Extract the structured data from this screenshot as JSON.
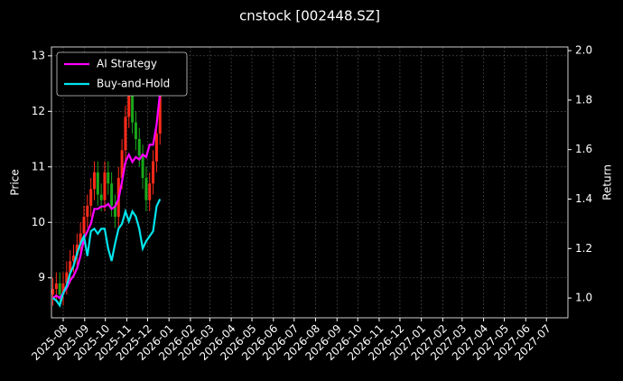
{
  "chart_data": {
    "type": "candlestick",
    "title": "cnstock [002448.SZ]",
    "ylabel": "Price",
    "y2label": "Return",
    "x": [
      2,
      7,
      12,
      17,
      22,
      27,
      32,
      37,
      42,
      47,
      52,
      57,
      62,
      67,
      72,
      77,
      82,
      87,
      92,
      97,
      102,
      107,
      112,
      117,
      122,
      127,
      132,
      137,
      142,
      147,
      152,
      157
    ],
    "open": [
      8.7,
      8.8,
      8.9,
      8.7,
      8.9,
      9.1,
      9.3,
      9.4,
      9.6,
      9.8,
      10.1,
      10.3,
      10.6,
      10.9,
      10.5,
      10.4,
      10.9,
      10.7,
      10.3,
      10.1,
      10.8,
      11.3,
      11.9,
      12.3,
      11.8,
      11.5,
      11.2,
      10.8,
      10.4,
      10.7,
      11.1,
      11.6
    ],
    "high": [
      9.0,
      9.1,
      9.1,
      9.1,
      9.3,
      9.5,
      9.6,
      9.8,
      10.0,
      10.3,
      10.5,
      10.8,
      11.1,
      11.1,
      10.7,
      11.1,
      11.1,
      10.9,
      10.5,
      11.0,
      11.5,
      12.1,
      12.5,
      12.5,
      12.0,
      11.7,
      11.4,
      11.0,
      10.9,
      11.3,
      11.8,
      12.6
    ],
    "low": [
      8.5,
      8.6,
      8.5,
      8.5,
      8.7,
      8.9,
      9.1,
      9.2,
      9.4,
      9.6,
      9.9,
      10.1,
      10.4,
      10.3,
      10.2,
      10.2,
      10.5,
      10.1,
      9.9,
      9.9,
      10.6,
      11.1,
      11.7,
      11.6,
      11.3,
      11.0,
      10.6,
      10.2,
      10.2,
      10.5,
      10.9,
      11.4
    ],
    "close": [
      8.8,
      8.9,
      8.7,
      8.9,
      9.1,
      9.3,
      9.4,
      9.6,
      9.8,
      10.1,
      10.3,
      10.6,
      10.9,
      10.5,
      10.4,
      10.9,
      10.7,
      10.3,
      10.1,
      10.8,
      11.3,
      11.9,
      12.3,
      11.8,
      11.5,
      11.2,
      10.8,
      10.4,
      10.7,
      11.1,
      11.6,
      12.4
    ],
    "up_color": "#ff2a1a",
    "down_color": "#1aa81a",
    "series": [
      {
        "name": "AI Strategy",
        "color": "#ff00ff",
        "axis": "y2",
        "values": [
          1.0,
          1.01,
          1.0,
          1.02,
          1.04,
          1.07,
          1.09,
          1.12,
          1.17,
          1.24,
          1.27,
          1.3,
          1.36,
          1.36,
          1.37,
          1.37,
          1.38,
          1.36,
          1.37,
          1.4,
          1.47,
          1.55,
          1.58,
          1.55,
          1.57,
          1.56,
          1.58,
          1.57,
          1.62,
          1.62,
          1.7,
          1.83
        ]
      },
      {
        "name": "Buy-and-Hold",
        "color": "#00e5ee",
        "axis": "y2",
        "values": [
          1.0,
          0.99,
          0.97,
          1.02,
          1.05,
          1.1,
          1.13,
          1.18,
          1.22,
          1.25,
          1.17,
          1.27,
          1.28,
          1.26,
          1.28,
          1.28,
          1.2,
          1.15,
          1.22,
          1.28,
          1.3,
          1.35,
          1.31,
          1.35,
          1.33,
          1.28,
          1.2,
          1.23,
          1.25,
          1.27,
          1.37,
          1.4
        ]
      }
    ],
    "xlim": [
      0,
      747
    ],
    "xticks": [
      {
        "value": 17,
        "label": "2025-08"
      },
      {
        "value": 48,
        "label": "2025-09"
      },
      {
        "value": 78,
        "label": "2025-10"
      },
      {
        "value": 109,
        "label": "2025-11"
      },
      {
        "value": 139,
        "label": "2025-12"
      },
      {
        "value": 170,
        "label": "2026-01"
      },
      {
        "value": 201,
        "label": "2026-02"
      },
      {
        "value": 229,
        "label": "2026-03"
      },
      {
        "value": 260,
        "label": "2026-04"
      },
      {
        "value": 290,
        "label": "2026-05"
      },
      {
        "value": 321,
        "label": "2026-06"
      },
      {
        "value": 351,
        "label": "2026-07"
      },
      {
        "value": 382,
        "label": "2026-08"
      },
      {
        "value": 413,
        "label": "2026-09"
      },
      {
        "value": 443,
        "label": "2026-10"
      },
      {
        "value": 474,
        "label": "2026-11"
      },
      {
        "value": 504,
        "label": "2026-12"
      },
      {
        "value": 535,
        "label": "2027-01"
      },
      {
        "value": 566,
        "label": "2027-02"
      },
      {
        "value": 594,
        "label": "2027-03"
      },
      {
        "value": 625,
        "label": "2027-04"
      },
      {
        "value": 655,
        "label": "2027-05"
      },
      {
        "value": 686,
        "label": "2027-06"
      },
      {
        "value": 716,
        "label": "2027-07"
      }
    ],
    "ylim": [
      8.28,
      13.16
    ],
    "yticks": [
      9,
      10,
      11,
      12,
      13
    ],
    "y2lim": [
      0.92,
      2.015
    ],
    "y2ticks": [
      {
        "value": 1,
        "label": "1.0"
      },
      1.2,
      1.4,
      1.6,
      1.8,
      {
        "value": 2,
        "label": "2.0"
      }
    ],
    "grid": true,
    "legend": "upper-left"
  }
}
